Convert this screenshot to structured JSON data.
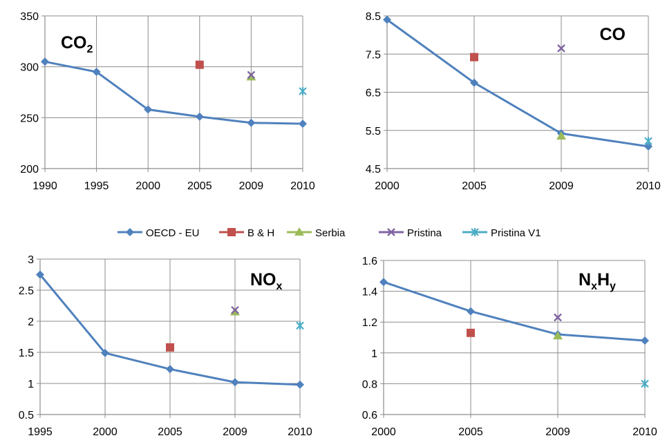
{
  "legend": {
    "position": "center",
    "entries": [
      {
        "key": "oecd",
        "label": "OECD - EU",
        "color": "#4F81BD",
        "marker": "diamond"
      },
      {
        "key": "bh",
        "label": "B & H",
        "color": "#C0504D",
        "marker": "square"
      },
      {
        "key": "serbia",
        "label": "Serbia",
        "color": "#9BBB59",
        "marker": "triangle"
      },
      {
        "key": "pristina",
        "label": "Pristina",
        "color": "#8064A2",
        "marker": "x"
      },
      {
        "key": "pristina_v1",
        "label": "Pristina V1",
        "color": "#4BACC6",
        "marker": "star"
      }
    ]
  },
  "chart_data": [
    {
      "id": "co2",
      "type": "line",
      "title_main": "CO",
      "title_sub": "2",
      "title_sub2": "",
      "categories": [
        "1990",
        "1995",
        "2000",
        "2005",
        "2009",
        "2010"
      ],
      "ylim": [
        200,
        350
      ],
      "yticks": [
        "200",
        "250",
        "300",
        "350"
      ],
      "grid": true,
      "series": [
        {
          "key": "oecd",
          "values": [
            305,
            295,
            258,
            251,
            245,
            244
          ]
        },
        {
          "key": "bh",
          "values": [
            null,
            null,
            null,
            302,
            null,
            null
          ]
        },
        {
          "key": "serbia",
          "values": [
            null,
            null,
            null,
            null,
            290,
            null
          ]
        },
        {
          "key": "pristina",
          "values": [
            null,
            null,
            null,
            null,
            292,
            null
          ]
        },
        {
          "key": "pristina_v1",
          "values": [
            null,
            null,
            null,
            null,
            null,
            276
          ]
        }
      ]
    },
    {
      "id": "co",
      "type": "line",
      "title_main": "CO",
      "title_sub": "",
      "title_sub2": "",
      "categories": [
        "2000",
        "2005",
        "2009",
        "2010"
      ],
      "ylim": [
        4.5,
        8.5
      ],
      "yticks": [
        "4.5",
        "5.5",
        "6.5",
        "7.5",
        "8.5"
      ],
      "grid": true,
      "series": [
        {
          "key": "oecd",
          "values": [
            8.4,
            6.75,
            5.42,
            5.08
          ]
        },
        {
          "key": "bh",
          "values": [
            null,
            7.42,
            null,
            null
          ]
        },
        {
          "key": "serbia",
          "values": [
            null,
            null,
            5.35,
            null
          ]
        },
        {
          "key": "pristina",
          "values": [
            null,
            null,
            7.65,
            null
          ]
        },
        {
          "key": "pristina_v1",
          "values": [
            null,
            null,
            null,
            5.22
          ]
        }
      ]
    },
    {
      "id": "nox",
      "type": "line",
      "title_main": "NO",
      "title_sub": "x",
      "title_sub2": "",
      "categories": [
        "1995",
        "2000",
        "2005",
        "2009",
        "2010"
      ],
      "ylim": [
        0.5,
        3
      ],
      "yticks": [
        "0.5",
        "1",
        "1.5",
        "2",
        "2.5",
        "3"
      ],
      "grid": true,
      "series": [
        {
          "key": "oecd",
          "values": [
            2.75,
            1.49,
            1.23,
            1.02,
            0.98
          ]
        },
        {
          "key": "bh",
          "values": [
            null,
            null,
            1.58,
            null,
            null
          ]
        },
        {
          "key": "serbia",
          "values": [
            null,
            null,
            null,
            2.15,
            null
          ]
        },
        {
          "key": "pristina",
          "values": [
            null,
            null,
            null,
            2.18,
            null
          ]
        },
        {
          "key": "pristina_v1",
          "values": [
            null,
            null,
            null,
            null,
            1.93
          ]
        }
      ]
    },
    {
      "id": "nxhy",
      "type": "line",
      "title_main": "N",
      "title_sub": "x",
      "title_main2": "H",
      "title_sub2": "y",
      "categories": [
        "2000",
        "2005",
        "2009",
        "2010"
      ],
      "ylim": [
        0.6,
        1.6
      ],
      "yticks": [
        "0.6",
        "0.8",
        "1",
        "1.2",
        "1.4",
        "1.6"
      ],
      "grid": true,
      "series": [
        {
          "key": "oecd",
          "values": [
            1.46,
            1.27,
            1.12,
            1.08
          ]
        },
        {
          "key": "bh",
          "values": [
            null,
            1.13,
            null,
            null
          ]
        },
        {
          "key": "serbia",
          "values": [
            null,
            null,
            1.11,
            null
          ]
        },
        {
          "key": "pristina",
          "values": [
            null,
            null,
            1.23,
            null
          ]
        },
        {
          "key": "pristina_v1",
          "values": [
            null,
            null,
            null,
            0.8
          ]
        }
      ]
    }
  ]
}
